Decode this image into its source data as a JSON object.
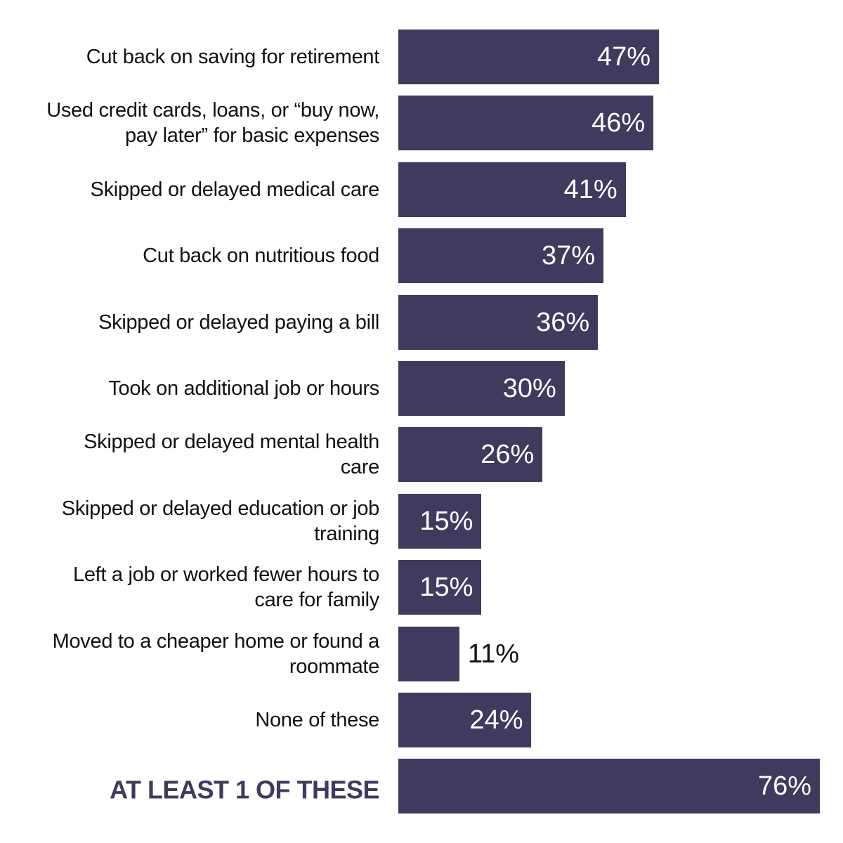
{
  "chart_data": {
    "type": "bar",
    "orientation": "horizontal",
    "color": "#413a5e",
    "categories": [
      "Cut back on saving for retirement",
      "Used credit cards, loans, or “buy now, pay later” for basic expenses",
      "Skipped or delayed medical care",
      "Cut back on nutritious food",
      "Skipped or delayed paying a bill",
      "Took on additional job or hours",
      "Skipped or delayed mental health care",
      "Skipped or delayed education or job training",
      "Left a job or worked fewer hours to care for family",
      "Moved to a cheaper home or found a roommate",
      "None of these",
      "AT LEAST 1 OF THESE"
    ],
    "values": [
      47,
      46,
      41,
      37,
      36,
      30,
      26,
      15,
      15,
      11,
      24,
      76
    ],
    "value_labels": [
      "47%",
      "46%",
      "41%",
      "37%",
      "36%",
      "30%",
      "26%",
      "15%",
      "15%",
      "11%",
      "24%",
      "76%"
    ]
  }
}
